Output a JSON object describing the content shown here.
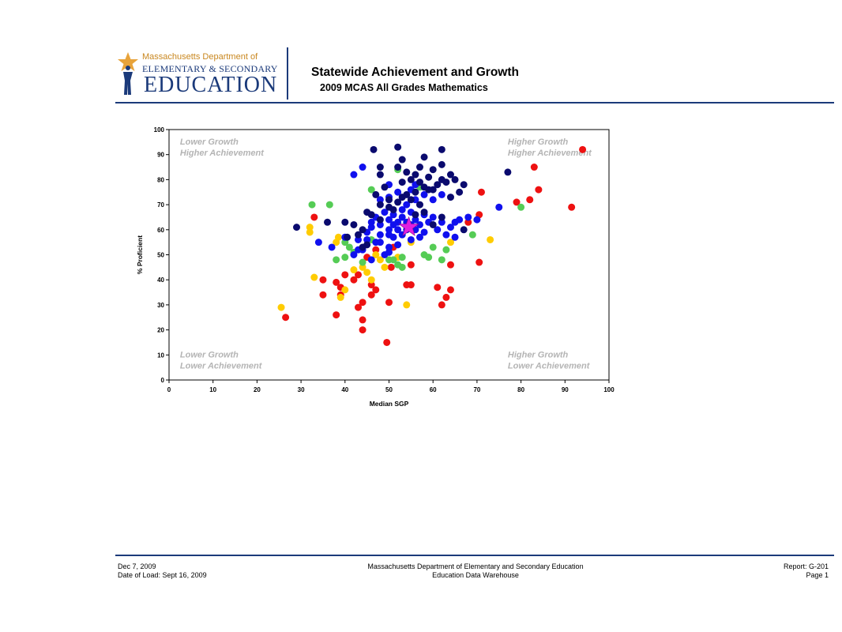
{
  "header": {
    "logo_line1": "Massachusetts Department of",
    "logo_line2": "ELEMENTARY & SECONDARY",
    "logo_line3": "EDUCATION",
    "title": "Statewide Achievement and Growth",
    "subtitle": "2009 MCAS All Grades Mathematics"
  },
  "colors": {
    "brand_blue": "#1b3a7a",
    "logo_gold": "#e8a33a",
    "quadrant_text": "#b4b4b4",
    "star": "#e020e0"
  },
  "footer": {
    "date": "Dec 7, 2009",
    "load_date": "Date of Load: Sept 16, 2009",
    "org": "Massachusetts Department of Elementary and Secondary Education",
    "system": "Education Data Warehouse",
    "report": "Report: G-201",
    "page": "Page 1"
  },
  "chart_data": {
    "type": "scatter",
    "xlabel": "Median SGP",
    "ylabel": "% Proficient",
    "xlim": [
      0,
      100
    ],
    "ylim": [
      0,
      100
    ],
    "xticks": [
      0,
      10,
      20,
      30,
      40,
      50,
      60,
      70,
      80,
      90,
      100
    ],
    "yticks": [
      0,
      10,
      20,
      30,
      40,
      50,
      60,
      70,
      80,
      90,
      100
    ],
    "grid": false,
    "annotations": [
      {
        "lines": [
          "Lower Growth",
          "Higher Achievement"
        ],
        "x": 2.5,
        "y": 94,
        "align": "left"
      },
      {
        "lines": [
          "Higher Growth",
          "Higher Achievement"
        ],
        "x": 77,
        "y": 94,
        "align": "left"
      },
      {
        "lines": [
          "Lower Growth",
          "Lower Achievement"
        ],
        "x": 2.5,
        "y": 9,
        "align": "left"
      },
      {
        "lines": [
          "Higher Growth",
          "Lower Achievement"
        ],
        "x": 77,
        "y": 9,
        "align": "left"
      }
    ],
    "state_marker": {
      "x": 54.5,
      "y": 61,
      "color": "#e020e0"
    },
    "series": [
      {
        "color": "#ee1111",
        "points": [
          [
            94,
            92
          ],
          [
            83,
            85
          ],
          [
            84,
            76
          ],
          [
            82,
            72
          ],
          [
            79,
            71
          ],
          [
            91.5,
            69
          ],
          [
            71,
            75
          ],
          [
            70.5,
            66
          ],
          [
            68,
            63
          ],
          [
            70.5,
            47
          ],
          [
            64,
            46
          ],
          [
            61,
            37
          ],
          [
            64,
            36
          ],
          [
            63,
            33
          ],
          [
            62,
            30
          ],
          [
            55,
            38
          ],
          [
            54,
            38
          ],
          [
            55,
            46
          ],
          [
            50.5,
            45
          ],
          [
            47,
            36
          ],
          [
            46,
            34
          ],
          [
            46,
            38
          ],
          [
            44,
            31
          ],
          [
            50,
            31
          ],
          [
            43,
            29
          ],
          [
            44,
            24
          ],
          [
            44,
            20
          ],
          [
            42,
            40
          ],
          [
            43,
            42
          ],
          [
            40,
            42
          ],
          [
            39,
            37
          ],
          [
            39,
            34
          ],
          [
            38,
            39
          ],
          [
            38,
            26
          ],
          [
            35,
            40
          ],
          [
            35,
            34
          ],
          [
            33,
            65
          ],
          [
            26.5,
            25
          ],
          [
            49.5,
            15
          ],
          [
            51,
            53
          ],
          [
            47,
            52
          ],
          [
            45,
            49
          ]
        ]
      },
      {
        "color": "#ffcc00",
        "points": [
          [
            25.5,
            29
          ],
          [
            32,
            61
          ],
          [
            32,
            59
          ],
          [
            33,
            41
          ],
          [
            38,
            55
          ],
          [
            38.5,
            57
          ],
          [
            39,
            33
          ],
          [
            40,
            36
          ],
          [
            42,
            44
          ],
          [
            45,
            43
          ],
          [
            46,
            40
          ],
          [
            48,
            48
          ],
          [
            49,
            45
          ],
          [
            54,
            30
          ],
          [
            55,
            55
          ],
          [
            64,
            55
          ],
          [
            73,
            56
          ],
          [
            47,
            50
          ],
          [
            52,
            49
          ],
          [
            44,
            45
          ]
        ]
      },
      {
        "color": "#55cc55",
        "points": [
          [
            32.5,
            70
          ],
          [
            36.5,
            70
          ],
          [
            38,
            48
          ],
          [
            40,
            49
          ],
          [
            41,
            53
          ],
          [
            42,
            51
          ],
          [
            44,
            47
          ],
          [
            46,
            56
          ],
          [
            50,
            48
          ],
          [
            51,
            48
          ],
          [
            52,
            46
          ],
          [
            53,
            45
          ],
          [
            53,
            49
          ],
          [
            58,
            50
          ],
          [
            59,
            49
          ],
          [
            60,
            53
          ],
          [
            62,
            48
          ],
          [
            63,
            52
          ],
          [
            69,
            58
          ],
          [
            80,
            69
          ],
          [
            52,
            84
          ],
          [
            57,
            77
          ],
          [
            46,
            76
          ],
          [
            40,
            55
          ]
        ]
      },
      {
        "color": "#1010ee",
        "points": [
          [
            34,
            55
          ],
          [
            37,
            53
          ],
          [
            40,
            57
          ],
          [
            42,
            50
          ],
          [
            43,
            52
          ],
          [
            43,
            56
          ],
          [
            45,
            56
          ],
          [
            45,
            59
          ],
          [
            46,
            61
          ],
          [
            46,
            63
          ],
          [
            47,
            55
          ],
          [
            47,
            65
          ],
          [
            48,
            58
          ],
          [
            48,
            62
          ],
          [
            49,
            50
          ],
          [
            49,
            67
          ],
          [
            50,
            53
          ],
          [
            50,
            58
          ],
          [
            50,
            60
          ],
          [
            50,
            64
          ],
          [
            51,
            57
          ],
          [
            51,
            62
          ],
          [
            51,
            66
          ],
          [
            52,
            54
          ],
          [
            52,
            60
          ],
          [
            52,
            63
          ],
          [
            53,
            58
          ],
          [
            53,
            65
          ],
          [
            53,
            68
          ],
          [
            54,
            60
          ],
          [
            54,
            63
          ],
          [
            55,
            56
          ],
          [
            55,
            62
          ],
          [
            55,
            67
          ],
          [
            56,
            60
          ],
          [
            56,
            64
          ],
          [
            57,
            57
          ],
          [
            57,
            62
          ],
          [
            58,
            59
          ],
          [
            58,
            66
          ],
          [
            59,
            63
          ],
          [
            60,
            65
          ],
          [
            61,
            60
          ],
          [
            62,
            63
          ],
          [
            63,
            58
          ],
          [
            64,
            61
          ],
          [
            65,
            63
          ],
          [
            65,
            57
          ],
          [
            66,
            64
          ],
          [
            68,
            65
          ],
          [
            70,
            64
          ],
          [
            75,
            69
          ],
          [
            46,
            48
          ],
          [
            44,
            52
          ],
          [
            48,
            72
          ],
          [
            50,
            73
          ],
          [
            52,
            75
          ],
          [
            55,
            76
          ],
          [
            56,
            78
          ],
          [
            58,
            74
          ],
          [
            60,
            72
          ],
          [
            62,
            74
          ],
          [
            54,
            70
          ],
          [
            56,
            72
          ],
          [
            44,
            85
          ],
          [
            42,
            82
          ],
          [
            50,
            78
          ],
          [
            48,
            55
          ],
          [
            50,
            51
          ]
        ]
      },
      {
        "color": "#0a0a6e",
        "points": [
          [
            29,
            61
          ],
          [
            36,
            63
          ],
          [
            40,
            63
          ],
          [
            42,
            62
          ],
          [
            43,
            58
          ],
          [
            44,
            60
          ],
          [
            45,
            54
          ],
          [
            46,
            66
          ],
          [
            46.5,
            92
          ],
          [
            52,
            93
          ],
          [
            57,
            85
          ],
          [
            58,
            89
          ],
          [
            62,
            92
          ],
          [
            62,
            86
          ],
          [
            60,
            84
          ],
          [
            59,
            81
          ],
          [
            56,
            82
          ],
          [
            55,
            80
          ],
          [
            53,
            79
          ],
          [
            52,
            85
          ],
          [
            48,
            82
          ],
          [
            48,
            85
          ],
          [
            47,
            74
          ],
          [
            48,
            70
          ],
          [
            50,
            72
          ],
          [
            50,
            69
          ],
          [
            51,
            68
          ],
          [
            52,
            71
          ],
          [
            53,
            73
          ],
          [
            54,
            74
          ],
          [
            55,
            72
          ],
          [
            56,
            75
          ],
          [
            57,
            70
          ],
          [
            58,
            77
          ],
          [
            59,
            76
          ],
          [
            60,
            76
          ],
          [
            61,
            78
          ],
          [
            62,
            80
          ],
          [
            63,
            79
          ],
          [
            64,
            82
          ],
          [
            65,
            80
          ],
          [
            66,
            75
          ],
          [
            67,
            78
          ],
          [
            64,
            73
          ],
          [
            62,
            65
          ],
          [
            60,
            62
          ],
          [
            58,
            67
          ],
          [
            56,
            66
          ],
          [
            57,
            79
          ],
          [
            77,
            83
          ],
          [
            67,
            60
          ],
          [
            54,
            83
          ],
          [
            53,
            88
          ],
          [
            49,
            77
          ],
          [
            45,
            67
          ],
          [
            40.5,
            57
          ],
          [
            48,
            64
          ],
          [
            44,
            53
          ]
        ]
      }
    ]
  }
}
